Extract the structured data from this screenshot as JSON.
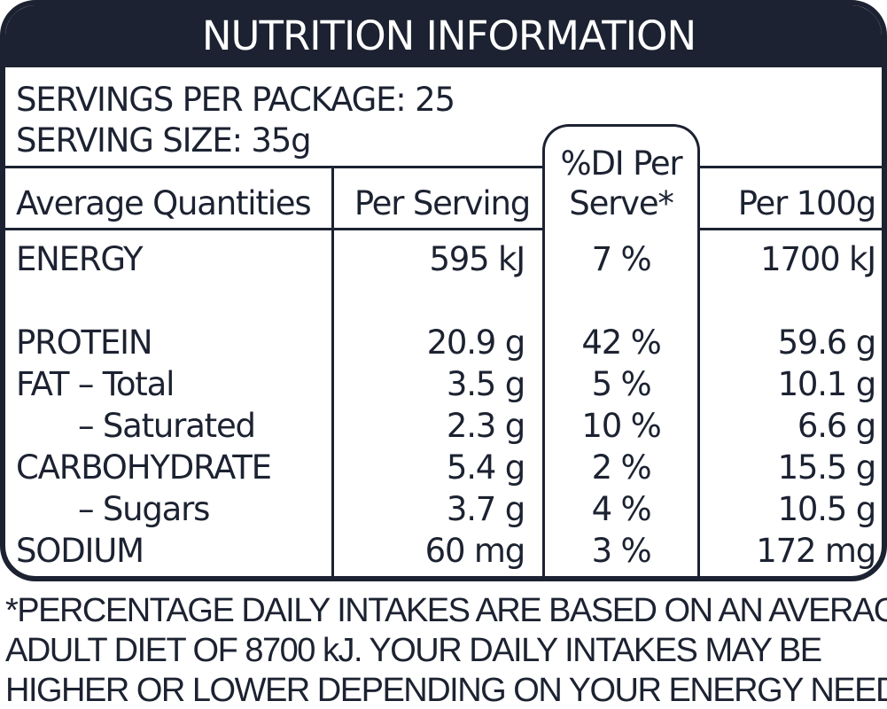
{
  "title": "NUTRITION INFORMATION",
  "servings_per_package": "SERVINGS PER PACKAGE: 25",
  "serving_size": "SERVING SIZE: 35g",
  "headers": {
    "quantities": "Average Quantities",
    "per_serving": "Per Serving",
    "di_line1": "%DI Per",
    "di_line2": "Serve*",
    "per_100g": "Per 100g"
  },
  "rows": [
    {
      "label": "ENERGY",
      "per_serving": "595 kJ",
      "di": "7 %",
      "per_100g": "1700 kJ"
    },
    {
      "label": "PROTEIN",
      "per_serving": "20.9 g",
      "di": "42 %",
      "per_100g": "59.6 g"
    },
    {
      "label": "FAT – Total",
      "per_serving": "3.5 g",
      "di": "5 %",
      "per_100g": "10.1 g"
    },
    {
      "label": "– Saturated",
      "per_serving": "2.3 g",
      "di": "10 %",
      "per_100g": "6.6 g"
    },
    {
      "label": "CARBOHYDRATE",
      "per_serving": "5.4 g",
      "di": "2 %",
      "per_100g": "15.5 g"
    },
    {
      "label": "– Sugars",
      "per_serving": "3.7 g",
      "di": "4 %",
      "per_100g": "10.5 g"
    },
    {
      "label": "SODIUM",
      "per_serving": "60 mg",
      "di": "3 %",
      "per_100g": "172 mg"
    }
  ],
  "footnote": [
    "*PERCENTAGE DAILY INTAKES ARE BASED ON AN AVERAGE",
    "ADULT DIET OF 8700 kJ. YOUR DAILY INTAKES MAY BE",
    "HIGHER OR LOWER DEPENDING ON YOUR ENERGY NEEDS."
  ],
  "colors": {
    "ink": "#1c2231",
    "background": "#ffffff"
  }
}
